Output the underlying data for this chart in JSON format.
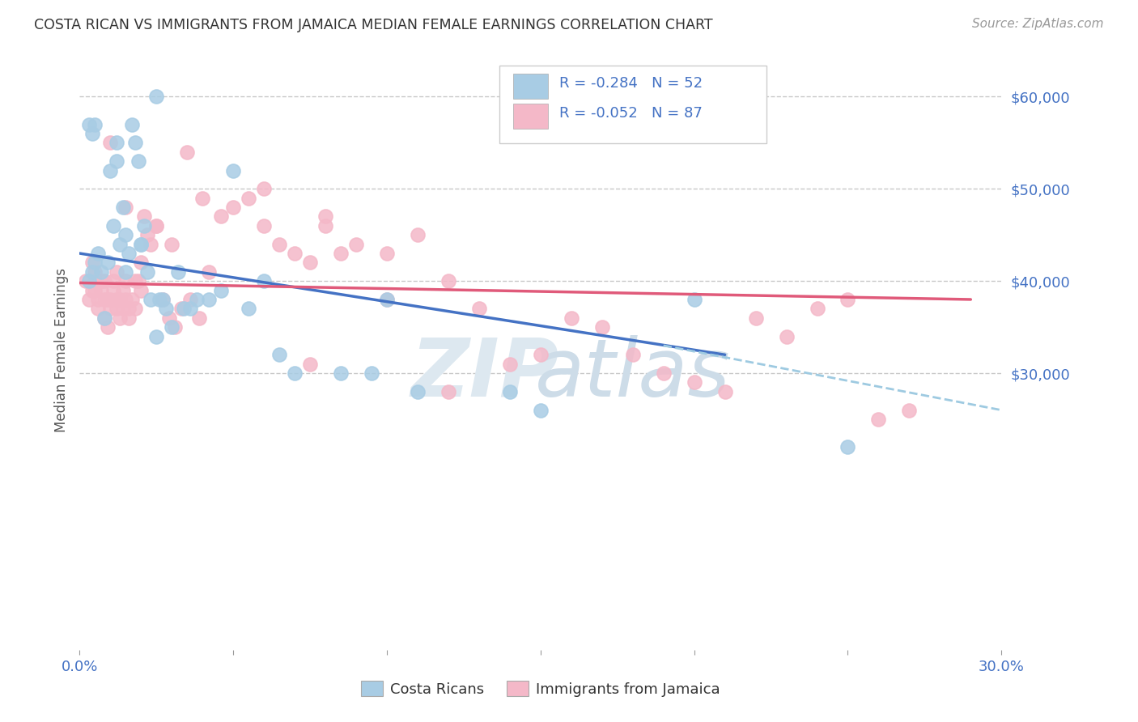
{
  "title": "COSTA RICAN VS IMMIGRANTS FROM JAMAICA MEDIAN FEMALE EARNINGS CORRELATION CHART",
  "source": "Source: ZipAtlas.com",
  "ylabel": "Median Female Earnings",
  "right_ytick_labels": [
    "$60,000",
    "$50,000",
    "$40,000",
    "$30,000"
  ],
  "right_ytick_values": [
    60000,
    50000,
    40000,
    30000
  ],
  "legend_blue_r": "-0.284",
  "legend_blue_n": "52",
  "legend_pink_r": "-0.052",
  "legend_pink_n": "87",
  "legend_blue_label": "Costa Ricans",
  "legend_pink_label": "Immigrants from Jamaica",
  "blue_color": "#a8cce4",
  "pink_color": "#f4b8c8",
  "line_blue": "#4472c4",
  "line_pink": "#e05a7a",
  "dashed_line_color": "#9ecae1",
  "blue_x": [
    0.003,
    0.004,
    0.005,
    0.006,
    0.007,
    0.008,
    0.009,
    0.01,
    0.011,
    0.012,
    0.013,
    0.014,
    0.015,
    0.016,
    0.017,
    0.018,
    0.019,
    0.02,
    0.021,
    0.022,
    0.023,
    0.025,
    0.026,
    0.027,
    0.028,
    0.03,
    0.032,
    0.034,
    0.036,
    0.038,
    0.042,
    0.046,
    0.05,
    0.055,
    0.06,
    0.065,
    0.07,
    0.085,
    0.095,
    0.1,
    0.11,
    0.14,
    0.15,
    0.2,
    0.25,
    0.003,
    0.004,
    0.005,
    0.012,
    0.015,
    0.02,
    0.025
  ],
  "blue_y": [
    40000,
    41000,
    42000,
    43000,
    41000,
    36000,
    42000,
    52000,
    46000,
    55000,
    44000,
    48000,
    45000,
    43000,
    57000,
    55000,
    53000,
    44000,
    46000,
    41000,
    38000,
    34000,
    38000,
    38000,
    37000,
    35000,
    41000,
    37000,
    37000,
    38000,
    38000,
    39000,
    52000,
    37000,
    40000,
    32000,
    30000,
    30000,
    30000,
    38000,
    28000,
    28000,
    26000,
    38000,
    22000,
    57000,
    56000,
    57000,
    53000,
    41000,
    44000,
    60000
  ],
  "pink_x": [
    0.002,
    0.003,
    0.004,
    0.004,
    0.005,
    0.005,
    0.006,
    0.006,
    0.007,
    0.007,
    0.008,
    0.008,
    0.009,
    0.009,
    0.01,
    0.01,
    0.011,
    0.011,
    0.012,
    0.012,
    0.013,
    0.013,
    0.014,
    0.014,
    0.015,
    0.015,
    0.016,
    0.016,
    0.017,
    0.018,
    0.019,
    0.02,
    0.021,
    0.022,
    0.023,
    0.025,
    0.027,
    0.029,
    0.031,
    0.033,
    0.036,
    0.039,
    0.042,
    0.046,
    0.05,
    0.055,
    0.06,
    0.065,
    0.07,
    0.075,
    0.08,
    0.085,
    0.09,
    0.1,
    0.11,
    0.12,
    0.13,
    0.14,
    0.15,
    0.16,
    0.17,
    0.18,
    0.19,
    0.2,
    0.21,
    0.22,
    0.23,
    0.24,
    0.25,
    0.26,
    0.27,
    0.01,
    0.015,
    0.02,
    0.025,
    0.03,
    0.04,
    0.06,
    0.08,
    0.1,
    0.005,
    0.008,
    0.012,
    0.018,
    0.035,
    0.075,
    0.12
  ],
  "pink_y": [
    40000,
    38000,
    42000,
    39000,
    41000,
    40000,
    38000,
    37000,
    39000,
    40000,
    38000,
    36000,
    35000,
    38000,
    37000,
    38000,
    40000,
    39000,
    38000,
    37000,
    36000,
    38000,
    39000,
    37000,
    40000,
    38000,
    37000,
    36000,
    38000,
    37000,
    40000,
    39000,
    47000,
    45000,
    44000,
    46000,
    38000,
    36000,
    35000,
    37000,
    38000,
    36000,
    41000,
    47000,
    48000,
    49000,
    46000,
    44000,
    43000,
    42000,
    46000,
    43000,
    44000,
    38000,
    45000,
    40000,
    37000,
    31000,
    32000,
    36000,
    35000,
    32000,
    30000,
    29000,
    28000,
    36000,
    34000,
    37000,
    38000,
    25000,
    26000,
    55000,
    48000,
    42000,
    46000,
    44000,
    49000,
    50000,
    47000,
    43000,
    39000,
    40000,
    41000,
    40000,
    54000,
    31000,
    28000
  ],
  "xlim": [
    0,
    0.3
  ],
  "ylim": [
    0,
    65000
  ],
  "blue_line_x0": 0.0,
  "blue_line_x1": 0.21,
  "blue_line_y0": 43000,
  "blue_line_y1": 32000,
  "pink_line_x0": 0.0,
  "pink_line_x1": 0.29,
  "pink_line_y0": 39800,
  "pink_line_y1": 38000,
  "dashed_line_x0": 0.19,
  "dashed_line_x1": 0.3,
  "dashed_line_y0": 33000,
  "dashed_line_y1": 26000
}
